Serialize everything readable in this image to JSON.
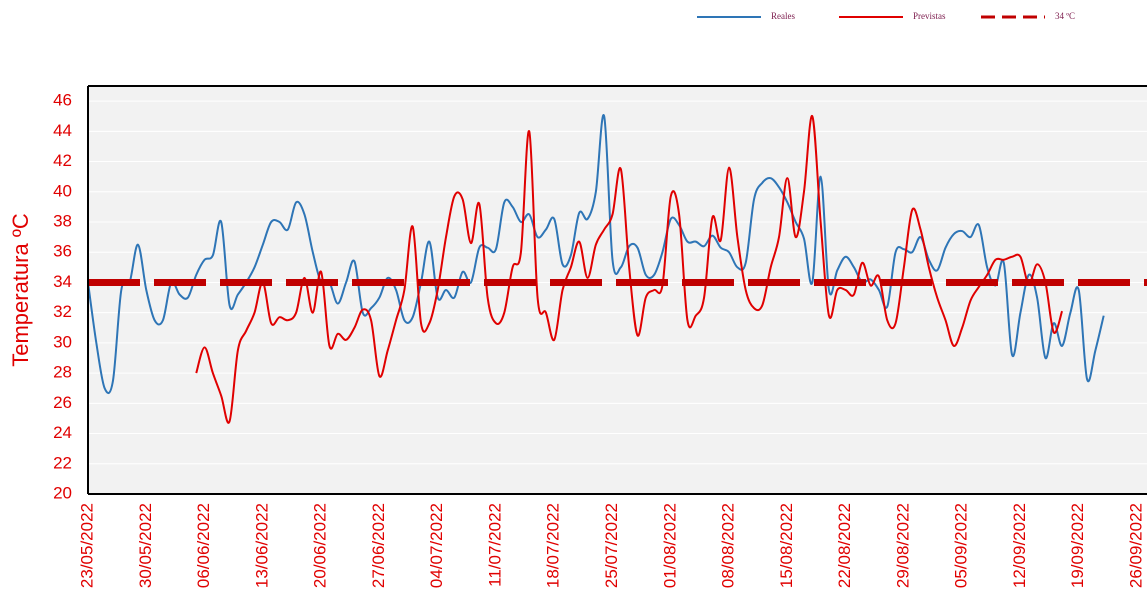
{
  "chart_data": {
    "type": "line",
    "ylabel": "Temperatura ºC",
    "ylim": [
      20,
      47
    ],
    "yticks": [
      20,
      22,
      24,
      26,
      28,
      30,
      32,
      34,
      36,
      38,
      40,
      42,
      44,
      46
    ],
    "grid": true,
    "legend": "top-right",
    "categories": [
      "23/05/2022",
      null,
      null,
      null,
      null,
      null,
      null,
      "30/05/2022",
      null,
      null,
      null,
      null,
      null,
      null,
      "06/06/2022",
      null,
      null,
      null,
      null,
      null,
      null,
      "13/06/2022",
      null,
      null,
      null,
      null,
      null,
      null,
      "20/06/2022",
      null,
      null,
      null,
      null,
      null,
      null,
      "27/06/2022",
      null,
      null,
      null,
      null,
      null,
      null,
      "04/07/2022",
      null,
      null,
      null,
      null,
      null,
      null,
      "11/07/2022",
      null,
      null,
      null,
      null,
      null,
      null,
      "18/07/2022",
      null,
      null,
      null,
      null,
      null,
      null,
      "25/07/2022",
      null,
      null,
      null,
      null,
      null,
      null,
      "01/08/2022",
      null,
      null,
      null,
      null,
      null,
      null,
      "08/08/2022",
      null,
      null,
      null,
      null,
      null,
      null,
      "15/08/2022",
      null,
      null,
      null,
      null,
      null,
      null,
      "22/08/2022",
      null,
      null,
      null,
      null,
      null,
      null,
      "29/08/2022",
      null,
      null,
      null,
      null,
      null,
      null,
      "05/09/2022",
      null,
      null,
      null,
      null,
      null,
      null,
      "12/09/2022",
      null,
      null,
      null,
      null,
      null,
      null,
      "19/09/2022",
      null,
      null,
      null,
      null,
      null,
      null,
      "26/09/2022",
      null
    ],
    "series": [
      {
        "name": "Reales",
        "color": "#2e75b6",
        "values": [
          34,
          30,
          27,
          27.5,
          33.5,
          34,
          36.5,
          33.5,
          31.5,
          31.5,
          34,
          33.2,
          33,
          34.5,
          35.5,
          35.8,
          38,
          32.5,
          33.2,
          34,
          35,
          36.5,
          38,
          38,
          37.5,
          39.3,
          38.5,
          36,
          34,
          34,
          32.6,
          34,
          35.4,
          32,
          32.3,
          33,
          34.3,
          33.5,
          31.5,
          31.7,
          34,
          36.7,
          33,
          33.5,
          33,
          34.7,
          34,
          36.3,
          36.3,
          36.2,
          39.3,
          39,
          38,
          38.5,
          37,
          37.5,
          38.2,
          35.2,
          35.8,
          38.6,
          38.2,
          40,
          45,
          35.5,
          35,
          36.4,
          36.3,
          34.5,
          34.5,
          36,
          38.2,
          37.8,
          36.7,
          36.7,
          36.4,
          37.1,
          36.3,
          36,
          35,
          35.3,
          39.5,
          40.6,
          40.9,
          40.3,
          39.3,
          38,
          36.9,
          34,
          41,
          33.5,
          34.8,
          35.7,
          35,
          34,
          34.2,
          33.5,
          32.4,
          36,
          36.2,
          36,
          37,
          35.5,
          34.8,
          36.3,
          37.2,
          37.4,
          37,
          37.8,
          35,
          33.8,
          35.3,
          29.2,
          32,
          34.5,
          33,
          29,
          31.3,
          29.8,
          32,
          33.5,
          27.6,
          29.5,
          31.8,
          null,
          null,
          null,
          null,
          null
        ]
      },
      {
        "name": "Previstas",
        "color": "#e00000",
        "values": [
          null,
          null,
          null,
          null,
          null,
          null,
          null,
          null,
          null,
          null,
          null,
          null,
          null,
          28,
          29.7,
          28,
          26.5,
          24.8,
          29.5,
          30.8,
          32,
          34,
          31.3,
          31.7,
          31.5,
          32,
          34.3,
          32,
          34.7,
          29.8,
          30.6,
          30.2,
          31,
          32.2,
          31.5,
          27.8,
          29.5,
          31.5,
          33.5,
          37.7,
          31.3,
          31.3,
          33.5,
          37,
          39.7,
          39.5,
          36.6,
          39.2,
          33,
          31.3,
          32,
          35,
          36,
          44,
          33,
          32,
          30.2,
          33.5,
          35,
          36.7,
          34.3,
          36.5,
          37.5,
          38.5,
          41.5,
          35,
          30.5,
          33,
          33.5,
          33.8,
          39.7,
          38.5,
          31.5,
          31.8,
          33,
          38.3,
          36.8,
          41.6,
          37,
          33.5,
          32.3,
          32.5,
          35,
          37,
          40.9,
          37,
          40,
          45,
          38,
          31.8,
          33.5,
          33.5,
          33.2,
          35.3,
          33.8,
          34.4,
          31.5,
          31.3,
          35,
          38.8,
          37.5,
          35,
          33,
          31.5,
          29.8,
          31,
          32.8,
          33.7,
          34.5,
          35.5,
          35.5,
          35.7,
          35.7,
          33.9,
          35.2,
          34,
          30.7,
          32.1,
          null,
          null,
          null,
          null,
          null,
          null,
          null,
          null,
          null,
          null
        ]
      }
    ],
    "threshold": {
      "name": "34 ºC",
      "value": 34,
      "color": "#c00000"
    }
  }
}
